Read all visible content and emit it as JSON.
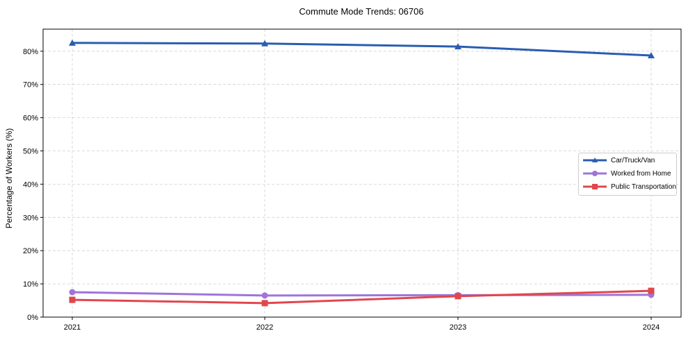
{
  "chart_data": {
    "type": "line",
    "title": "Commute Mode Trends: 06706",
    "xlabel": "",
    "ylabel": "Percentage of Workers (%)",
    "x": [
      "2021",
      "2022",
      "2023",
      "2024"
    ],
    "ylim": [
      0,
      86
    ],
    "yticks": [
      "0%",
      "10%",
      "20%",
      "30%",
      "40%",
      "50%",
      "60%",
      "70%",
      "80%"
    ],
    "grid": true,
    "legend_position": "center right",
    "series": [
      {
        "name": "Car/Truck/Van",
        "color": "#2a5db0",
        "marker": "triangle",
        "values": [
          82.5,
          82.3,
          81.4,
          78.7
        ]
      },
      {
        "name": "Worked from Home",
        "color": "#9e75d9",
        "marker": "circle",
        "values": [
          7.5,
          6.5,
          6.6,
          6.7
        ]
      },
      {
        "name": "Public Transportation",
        "color": "#e0474c",
        "marker": "square",
        "values": [
          5.2,
          4.2,
          6.3,
          7.9
        ]
      }
    ]
  },
  "legend": {
    "items": [
      "Car/Truck/Van",
      "Worked from Home",
      "Public Transportation"
    ]
  }
}
